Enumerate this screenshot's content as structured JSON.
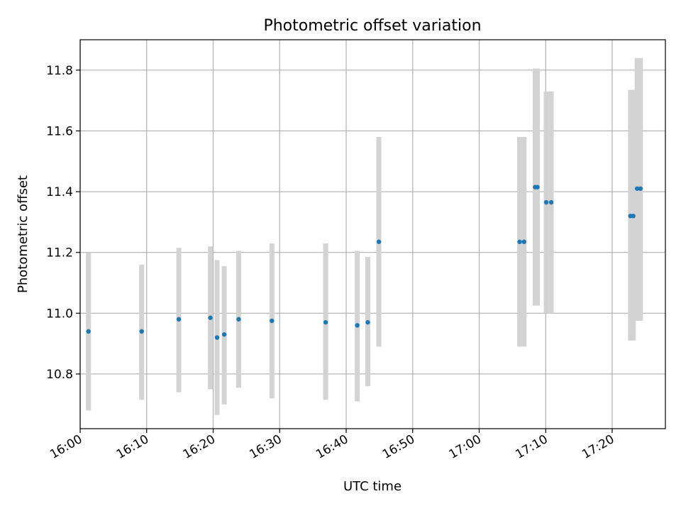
{
  "chart_data": {
    "type": "scatter",
    "title": "Photometric offset variation",
    "xlabel": "UTC time",
    "ylabel": "Photometric offset",
    "x_ticks": [
      "16:00",
      "16:10",
      "16:20",
      "16:30",
      "16:40",
      "16:50",
      "17:00",
      "17:10",
      "17:20"
    ],
    "y_ticks": [
      "10.8",
      "11.0",
      "11.2",
      "11.4",
      "11.6",
      "11.8"
    ],
    "xlim": [
      "16:00",
      "17:28"
    ],
    "ylim": [
      10.62,
      11.9
    ],
    "grid": true,
    "colors": {
      "point": "#1f77b4",
      "errorbar": "#d3d3d3"
    },
    "series": [
      {
        "points": [
          {
            "t": "16:01:15",
            "y": 10.94,
            "lo": 10.68,
            "hi": 11.2
          },
          {
            "t": "16:09:15",
            "y": 10.94,
            "lo": 10.715,
            "hi": 11.16
          },
          {
            "t": "16:14:50",
            "y": 10.98,
            "lo": 10.74,
            "hi": 11.215
          },
          {
            "t": "16:19:35",
            "y": 10.985,
            "lo": 10.75,
            "hi": 11.22
          },
          {
            "t": "16:20:35",
            "y": 10.92,
            "lo": 10.665,
            "hi": 11.175
          },
          {
            "t": "16:21:40",
            "y": 10.93,
            "lo": 10.7,
            "hi": 11.155
          },
          {
            "t": "16:23:50",
            "y": 10.98,
            "lo": 10.755,
            "hi": 11.205
          },
          {
            "t": "16:28:50",
            "y": 10.975,
            "lo": 10.72,
            "hi": 11.23
          },
          {
            "t": "16:36:55",
            "y": 10.97,
            "lo": 10.715,
            "hi": 11.23
          },
          {
            "t": "16:41:40",
            "y": 10.96,
            "lo": 10.71,
            "hi": 11.205
          },
          {
            "t": "16:43:15",
            "y": 10.97,
            "lo": 10.76,
            "hi": 11.185
          },
          {
            "t": "16:44:55",
            "y": 11.235,
            "lo": 10.89,
            "hi": 11.58
          },
          {
            "t": "17:06:05",
            "y": 11.235,
            "lo": 10.89,
            "hi": 11.58
          },
          {
            "t": "17:06:45",
            "y": 11.235,
            "lo": 10.89,
            "hi": 11.58
          },
          {
            "t": "17:08:25",
            "y": 11.415,
            "lo": 11.025,
            "hi": 11.805
          },
          {
            "t": "17:08:45",
            "y": 11.415,
            "lo": 11.025,
            "hi": 11.805
          },
          {
            "t": "17:10:05",
            "y": 11.365,
            "lo": 11.0,
            "hi": 11.73
          },
          {
            "t": "17:10:50",
            "y": 11.365,
            "lo": 11.0,
            "hi": 11.73
          },
          {
            "t": "17:22:45",
            "y": 11.32,
            "lo": 10.91,
            "hi": 11.735
          },
          {
            "t": "17:23:10",
            "y": 11.32,
            "lo": 10.91,
            "hi": 11.735
          },
          {
            "t": "17:23:45",
            "y": 11.41,
            "lo": 10.975,
            "hi": 11.84
          },
          {
            "t": "17:24:15",
            "y": 11.41,
            "lo": 10.975,
            "hi": 11.84
          }
        ]
      }
    ]
  }
}
